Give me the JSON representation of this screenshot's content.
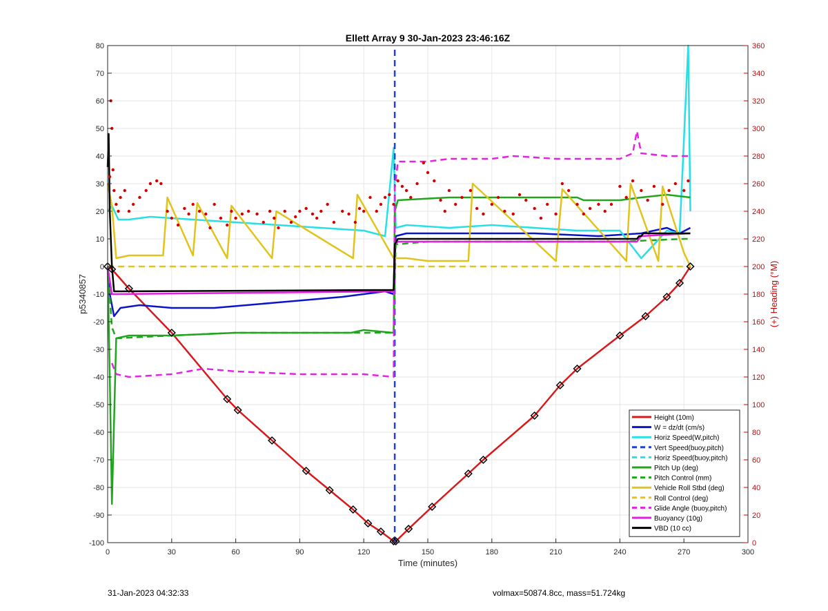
{
  "footer": {
    "left": "31-Jan-2023 04:32:33",
    "right": "volmax=50874.8cc, mass=51.724kg"
  },
  "chart_data": {
    "type": "line",
    "title": "Ellett Array 9 30-Jan-2023 23:46:16Z",
    "xlabel": "Time (minutes)",
    "ylabel": "p5340857",
    "y2label": "(+) Heading (°M)",
    "xlim": [
      0,
      300
    ],
    "ylim": [
      -100,
      80
    ],
    "y2lim": [
      0,
      360
    ],
    "xticks": [
      0,
      30,
      60,
      90,
      120,
      150,
      180,
      210,
      240,
      270,
      300
    ],
    "yticks": [
      -100,
      -90,
      -80,
      -70,
      -60,
      -50,
      -40,
      -30,
      -20,
      -10,
      0,
      10,
      20,
      30,
      40,
      50,
      60,
      70,
      80
    ],
    "y2ticks": [
      0,
      20,
      40,
      60,
      80,
      100,
      120,
      140,
      160,
      180,
      200,
      220,
      240,
      260,
      280,
      300,
      320,
      340,
      360
    ],
    "grid": true,
    "legend_position": "bottom-right",
    "series": [
      {
        "name": "Height (10m)",
        "color": "#d7191c",
        "dash": "solid",
        "x": [
          0,
          2,
          10,
          30,
          56,
          61,
          77,
          93,
          104,
          115,
          122,
          128,
          134,
          135,
          141,
          152,
          169,
          176,
          200,
          212,
          220,
          240,
          252,
          262,
          268,
          273
        ],
        "y": [
          0,
          -1,
          -8,
          -24,
          -48,
          -52,
          -63,
          -74,
          -81,
          -88,
          -93,
          -96,
          -99.5,
          -99.5,
          -95,
          -87,
          -75,
          -70,
          -54,
          -43,
          -37,
          -25,
          -18,
          -11,
          -6,
          0
        ]
      },
      {
        "name": "W = dz/dt (cm/s)",
        "color": "#0a14c8",
        "dash": "solid",
        "x": [
          0,
          1,
          3,
          6,
          15,
          30,
          50,
          80,
          110,
          130,
          134,
          135,
          140,
          170,
          200,
          230,
          250,
          262,
          268,
          273
        ],
        "y": [
          0,
          -10,
          -18,
          -15,
          -14,
          -15,
          -15,
          -13,
          -11,
          -9,
          -10,
          11,
          12,
          12,
          12,
          11,
          12,
          14,
          12,
          14
        ]
      },
      {
        "name": "Horiz Speed(W,pitch)",
        "color": "#27e0e5",
        "dash": "solid",
        "x": [
          0,
          2,
          5,
          10,
          20,
          40,
          60,
          80,
          100,
          120,
          130,
          134,
          135,
          140,
          160,
          180,
          200,
          220,
          240,
          250,
          262,
          268,
          272,
          273
        ],
        "y": [
          20,
          22,
          17,
          17,
          18,
          17,
          16,
          15,
          14,
          13,
          11,
          43,
          14,
          15,
          14,
          15,
          14,
          13,
          13,
          3,
          13,
          12,
          80,
          20
        ]
      },
      {
        "name": "Vert Speed(buoy,pitch)",
        "color": "#1f3fd6",
        "dash": "dash",
        "x": [
          134.5,
          134.5
        ],
        "y": [
          -100,
          80
        ]
      },
      {
        "name": "Horiz Speed(buoy,pitch)",
        "color": "#27e0e5",
        "dash": "dash",
        "x": [],
        "y": []
      },
      {
        "name": "Pitch Up (deg)",
        "color": "#22a51e",
        "dash": "solid",
        "x": [
          0,
          1,
          2,
          4,
          10,
          30,
          60,
          90,
          114,
          120,
          134,
          134.5,
          136,
          160,
          200,
          220,
          223,
          240,
          250,
          262,
          273
        ],
        "y": [
          0,
          -40,
          -86,
          -26,
          -25,
          -25,
          -24,
          -24,
          -24,
          -23,
          -24,
          20,
          24,
          25,
          25,
          25,
          24,
          24,
          25,
          26,
          25
        ]
      },
      {
        "name": "Pitch Control (mm)",
        "color": "#22a51e",
        "dash": "dash",
        "x": [
          0,
          2,
          4,
          30,
          60,
          90,
          120,
          134,
          135,
          150,
          180,
          210,
          240,
          270,
          273
        ],
        "y": [
          0,
          -22,
          -26,
          -25,
          -24,
          -24,
          -24,
          -24,
          8,
          9,
          9,
          9,
          9,
          10,
          10
        ]
      },
      {
        "name": "Vehicle Roll Stbd (deg)",
        "color": "#e2c31b",
        "dash": "solid",
        "x": [
          0,
          2,
          4,
          10,
          26,
          28,
          40,
          42,
          56,
          58,
          77,
          79,
          115,
          117,
          134,
          135,
          140,
          150,
          169,
          171,
          210,
          213,
          243,
          245,
          258,
          260,
          270,
          273
        ],
        "y": [
          30,
          22,
          3,
          4,
          4,
          25,
          4,
          23,
          3,
          22,
          3,
          20,
          3,
          26,
          3,
          3,
          3,
          2,
          2,
          30,
          2,
          28,
          2,
          30,
          2,
          29,
          5,
          0
        ]
      },
      {
        "name": "Roll Control (deg)",
        "color": "#e2c31b",
        "dash": "dash",
        "x": [
          0,
          4,
          30,
          60,
          90,
          120,
          134,
          135,
          170,
          200,
          230,
          260,
          273
        ],
        "y": [
          0,
          0,
          0,
          0,
          0,
          0,
          0,
          0,
          0,
          0,
          0,
          0,
          0
        ]
      },
      {
        "name": "Glide Angle (buoy,pitch)",
        "color": "#e124e1",
        "dash": "dash",
        "x": [
          2,
          4,
          10,
          30,
          45,
          60,
          90,
          120,
          134,
          134.5,
          136,
          150,
          160,
          180,
          190,
          210,
          240,
          246,
          248,
          250,
          262,
          268,
          273
        ],
        "y": [
          -35,
          -39,
          -40,
          -39,
          -37,
          -38,
          -39,
          -39,
          -40,
          28,
          38,
          38,
          39,
          39,
          40,
          39,
          39,
          41,
          49,
          41,
          40,
          40,
          40
        ]
      },
      {
        "name": "Buoyancy (10g)",
        "color": "#e020e0",
        "dash": "solid",
        "x": [
          0,
          2,
          4,
          134,
          134.5,
          136,
          248,
          250,
          273
        ],
        "y": [
          0,
          -10,
          -10,
          -9,
          8,
          9,
          9,
          11,
          12
        ]
      },
      {
        "name": "VBD (10 cc)",
        "color": "#000000",
        "dash": "solid",
        "x": [
          0,
          0.5,
          1,
          2,
          3,
          4,
          134,
          134.5,
          136,
          248,
          249,
          250,
          251,
          273
        ],
        "y": [
          36,
          48,
          20,
          0,
          -9,
          -9,
          -8.5,
          8,
          10,
          10,
          11,
          11,
          12,
          12
        ]
      }
    ],
    "heading_dots": {
      "name": "(+) Heading (°M)",
      "color": "#d40000",
      "x": [
        1,
        1.5,
        2,
        2.5,
        3,
        4,
        5,
        6,
        8,
        10,
        12,
        15,
        18,
        20,
        23,
        25,
        28,
        30,
        33,
        36,
        38,
        40,
        43,
        46,
        48,
        50,
        53,
        56,
        58,
        60,
        63,
        66,
        70,
        73,
        76,
        78,
        80,
        83,
        86,
        88,
        90,
        93,
        96,
        98,
        100,
        103,
        106,
        110,
        113,
        116,
        118,
        120,
        123,
        126,
        128,
        130,
        132,
        134,
        136,
        138,
        140,
        142,
        145,
        148,
        150,
        153,
        156,
        158,
        160,
        163,
        166,
        170,
        173,
        176,
        180,
        183,
        186,
        190,
        193,
        196,
        200,
        203,
        206,
        210,
        213,
        216,
        220,
        223,
        226,
        230,
        233,
        236,
        240,
        243,
        246,
        250,
        253,
        256,
        260,
        263,
        266,
        270,
        272
      ],
      "y": [
        265,
        320,
        300,
        270,
        255,
        245,
        240,
        250,
        255,
        240,
        245,
        250,
        255,
        260,
        262,
        260,
        240,
        235,
        230,
        242,
        238,
        245,
        240,
        238,
        228,
        245,
        235,
        230,
        240,
        235,
        238,
        240,
        238,
        232,
        240,
        235,
        228,
        240,
        232,
        236,
        240,
        242,
        238,
        235,
        240,
        245,
        232,
        240,
        238,
        232,
        242,
        240,
        250,
        240,
        245,
        250,
        252,
        245,
        262,
        258,
        255,
        250,
        260,
        275,
        268,
        262,
        248,
        240,
        255,
        245,
        250,
        255,
        242,
        238,
        245,
        250,
        240,
        238,
        252,
        248,
        242,
        235,
        245,
        238,
        260,
        255,
        245,
        238,
        242,
        245,
        240,
        245,
        258,
        250,
        262,
        255,
        248,
        258,
        245,
        255,
        260,
        255,
        262
      ]
    },
    "markers_on": "Height (10m)"
  }
}
